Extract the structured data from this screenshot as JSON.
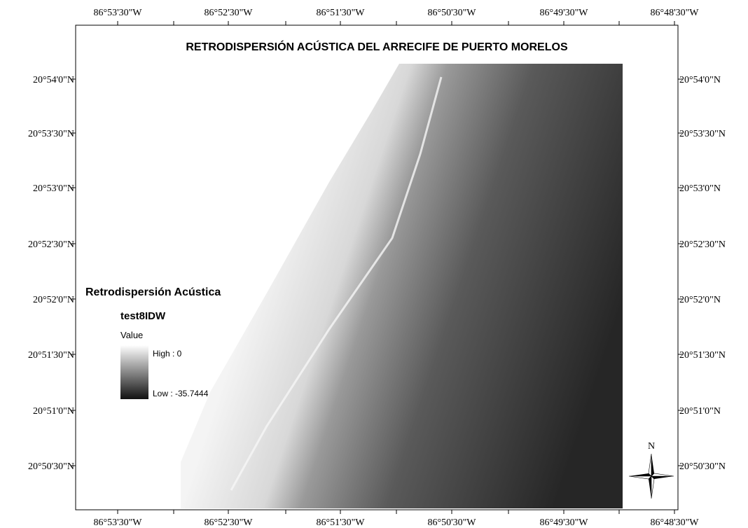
{
  "title": "RETRODISPERSIÓN ACÚSTICA DEL ARRECIFE DE PUERTO MORELOS",
  "longitude_labels": [
    "86°53'30\"W",
    "86°52'30\"W",
    "86°51'30\"W",
    "86°50'30\"W",
    "86°49'30\"W",
    "86°48'30\"W"
  ],
  "latitude_labels": [
    "20°54'0\"N",
    "20°53'30\"N",
    "20°53'0\"N",
    "20°52'30\"N",
    "20°52'0\"N",
    "20°51'30\"N",
    "20°51'0\"N",
    "20°50'30\"N"
  ],
  "legend": {
    "title": "Retrodispersión Acústica",
    "layer": "test8IDW",
    "field": "Value",
    "high": "High : 0",
    "low": "Low : -35.7444"
  },
  "north_label": "N"
}
